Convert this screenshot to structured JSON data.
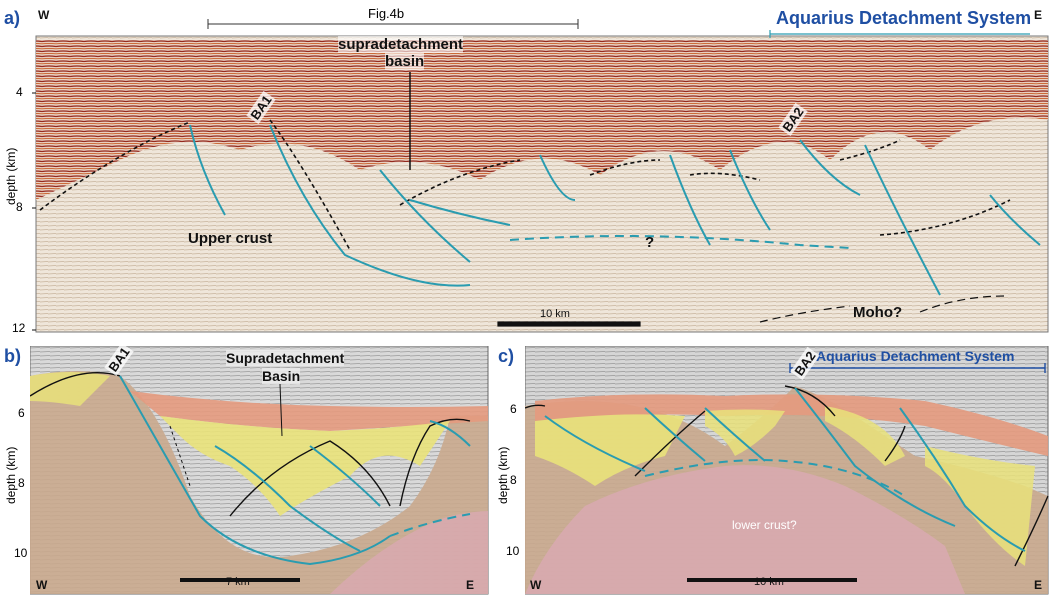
{
  "panel_a": {
    "label": "a)",
    "west": "W",
    "east": "E",
    "fig_ref": "Fig.4b",
    "title": "Aquarius Detachment System",
    "basin_label_line1": "supradetachment",
    "basin_label_line2": "basin",
    "fault_ba1": "BA1",
    "fault_ba2": "BA2",
    "upper_crust": "Upper crust",
    "question": "?",
    "moho": "Moho?",
    "scale": "10 km",
    "depth_title": "depth (km)",
    "depth_ticks": [
      "4",
      "8",
      "12"
    ]
  },
  "panel_b": {
    "label": "b)",
    "west": "W",
    "east": "E",
    "basin_label_line1": "Supradetachment",
    "basin_label_line2": "Basin",
    "fault_ba1": "BA1",
    "scale": "7 km",
    "depth_title": "depth (km)",
    "depth_ticks": [
      "6",
      "8",
      "10"
    ]
  },
  "panel_c": {
    "label": "c)",
    "west": "W",
    "east": "E",
    "title": "Aquarius Detachment System",
    "fault_ba2": "BA2",
    "lower_crust": "lower crust?",
    "scale": "10 km",
    "depth_title": "depth (km)",
    "depth_ticks": [
      "6",
      "8",
      "10"
    ]
  },
  "colors": {
    "fault": "#2a9cb0",
    "sediment_red": "#b2381f",
    "sediment_yellow": "#e9e27a",
    "basement_tan": "#c9a98d",
    "lower_crust_pink": "#d9a9b2",
    "accent_blue": "#1f4fa3"
  }
}
